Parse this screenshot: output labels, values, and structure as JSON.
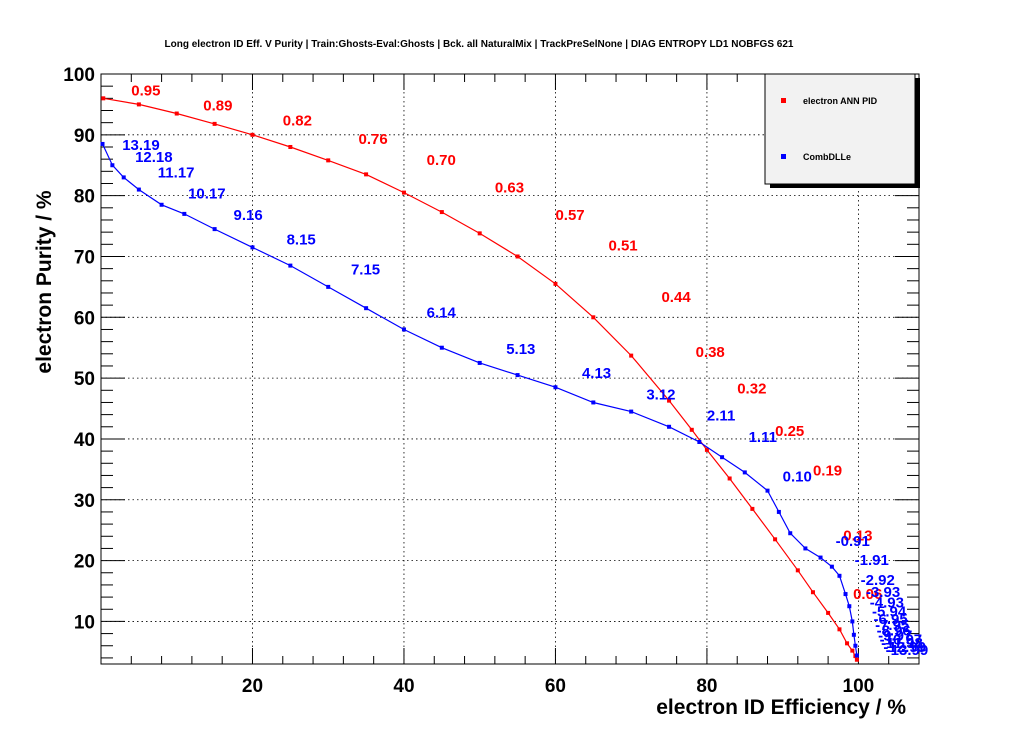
{
  "chart_data": {
    "type": "line",
    "title": "Long electron ID Eff. V Purity | Train:Ghosts-Eval:Ghosts | Bck. all NaturalMix | TrackPreSelNone | DIAG ENTROPY LD1 NOBFGS 621",
    "xlabel": "electron ID Efficiency / %",
    "ylabel": "electron Purity / %",
    "xlim": [
      0,
      108
    ],
    "ylim": [
      3,
      100
    ],
    "xticks": [
      "20",
      "40",
      "60",
      "80",
      "100"
    ],
    "yticks": [
      "10",
      "20",
      "30",
      "40",
      "50",
      "60",
      "70",
      "80",
      "90",
      "100"
    ],
    "grid": true,
    "legend_position": "top-right",
    "series": [
      {
        "name": "electron ANN PID",
        "color": "#ff0000",
        "x": [
          0.3,
          5,
          10,
          15,
          20,
          25,
          30,
          35,
          40,
          45,
          50,
          55,
          60,
          65,
          70,
          75,
          78,
          80,
          83,
          86,
          89,
          92,
          94,
          96,
          97.5,
          98.5,
          99.2,
          99.6,
          99.8
        ],
        "y": [
          96,
          95,
          93.5,
          91.8,
          90,
          88,
          85.8,
          83.5,
          80.5,
          77.3,
          73.8,
          70,
          65.5,
          60,
          53.7,
          46.3,
          41.5,
          38.2,
          33.5,
          28.5,
          23.5,
          18.4,
          14.8,
          11.4,
          8.7,
          6.4,
          5.2,
          4.3,
          3.7
        ],
        "cut_labels": [
          "0.95",
          "0.89",
          "0.82",
          "0.76",
          "0.70",
          "0.63",
          "0.57",
          "0.51",
          "0.44",
          "0.38",
          "0.32",
          "0.25",
          "0.19",
          "0.13",
          "0.06"
        ],
        "cut_points": [
          [
            4,
            96.5
          ],
          [
            13.5,
            94
          ],
          [
            24,
            91.5
          ],
          [
            34,
            88.5
          ],
          [
            43,
            85
          ],
          [
            52,
            80.5
          ],
          [
            60,
            76
          ],
          [
            67,
            71
          ],
          [
            74,
            62.5
          ],
          [
            78.5,
            53.5
          ],
          [
            84,
            47.5
          ],
          [
            89,
            40.5
          ],
          [
            94,
            34
          ],
          [
            98,
            23.3
          ],
          [
            99.3,
            13.7
          ]
        ]
      },
      {
        "name": "CombDLLe",
        "color": "#0000ff",
        "x": [
          0.2,
          1.5,
          3,
          5,
          8,
          11,
          15,
          20,
          25,
          30,
          35,
          40,
          45,
          50,
          55,
          60,
          65,
          70,
          75,
          79,
          82,
          85,
          88,
          89.5,
          91,
          93,
          95,
          96.5,
          97.5,
          98.3,
          98.8,
          99.2,
          99.4,
          99.6,
          99.8
        ],
        "y": [
          88.5,
          85,
          83,
          81,
          78.5,
          77,
          74.5,
          71.5,
          68.5,
          65,
          61.5,
          58,
          55,
          52.5,
          50.5,
          48.5,
          46,
          44.5,
          42,
          39.5,
          37,
          34.5,
          31.5,
          28,
          24.5,
          22,
          20.5,
          19,
          17.5,
          14.5,
          12.5,
          10,
          7.8,
          6,
          4.4
        ],
        "cut_labels": [
          "13.19",
          "12.18",
          "11.17",
          "10.17",
          "9.16",
          "8.15",
          "7.15",
          "6.14",
          "5.13",
          "4.13",
          "3.12",
          "2.11",
          "1.11",
          "0.10",
          "-0.91",
          "-1.91",
          "-2.92",
          "-3.93",
          "-4.93",
          "-5.94",
          "-6.95",
          "-7.95",
          "-8.96",
          "-9.97",
          "-10.97",
          "-11.98",
          "-12.99",
          "-13.99"
        ],
        "cut_points": [
          [
            2.8,
            87.5
          ],
          [
            4.5,
            85.5
          ],
          [
            7.5,
            83
          ],
          [
            11.5,
            79.5
          ],
          [
            17.5,
            76
          ],
          [
            24.5,
            72
          ],
          [
            33,
            67
          ],
          [
            43,
            60
          ],
          [
            53.5,
            54
          ],
          [
            63.5,
            50
          ],
          [
            72,
            46.5
          ],
          [
            80,
            43
          ],
          [
            85.5,
            39.5
          ],
          [
            90,
            33
          ],
          [
            97,
            22.4
          ],
          [
            99.5,
            19.3
          ],
          [
            100.3,
            16
          ],
          [
            101,
            14
          ],
          [
            101.5,
            12.3
          ],
          [
            101.8,
            10.8
          ],
          [
            102,
            9.6
          ],
          [
            102.2,
            8.6
          ],
          [
            102.4,
            7.7
          ],
          [
            102.6,
            6.9
          ],
          [
            102.8,
            6.2
          ],
          [
            103,
            5.6
          ],
          [
            103.3,
            5.0
          ],
          [
            103.6,
            4.5
          ]
        ]
      }
    ]
  }
}
